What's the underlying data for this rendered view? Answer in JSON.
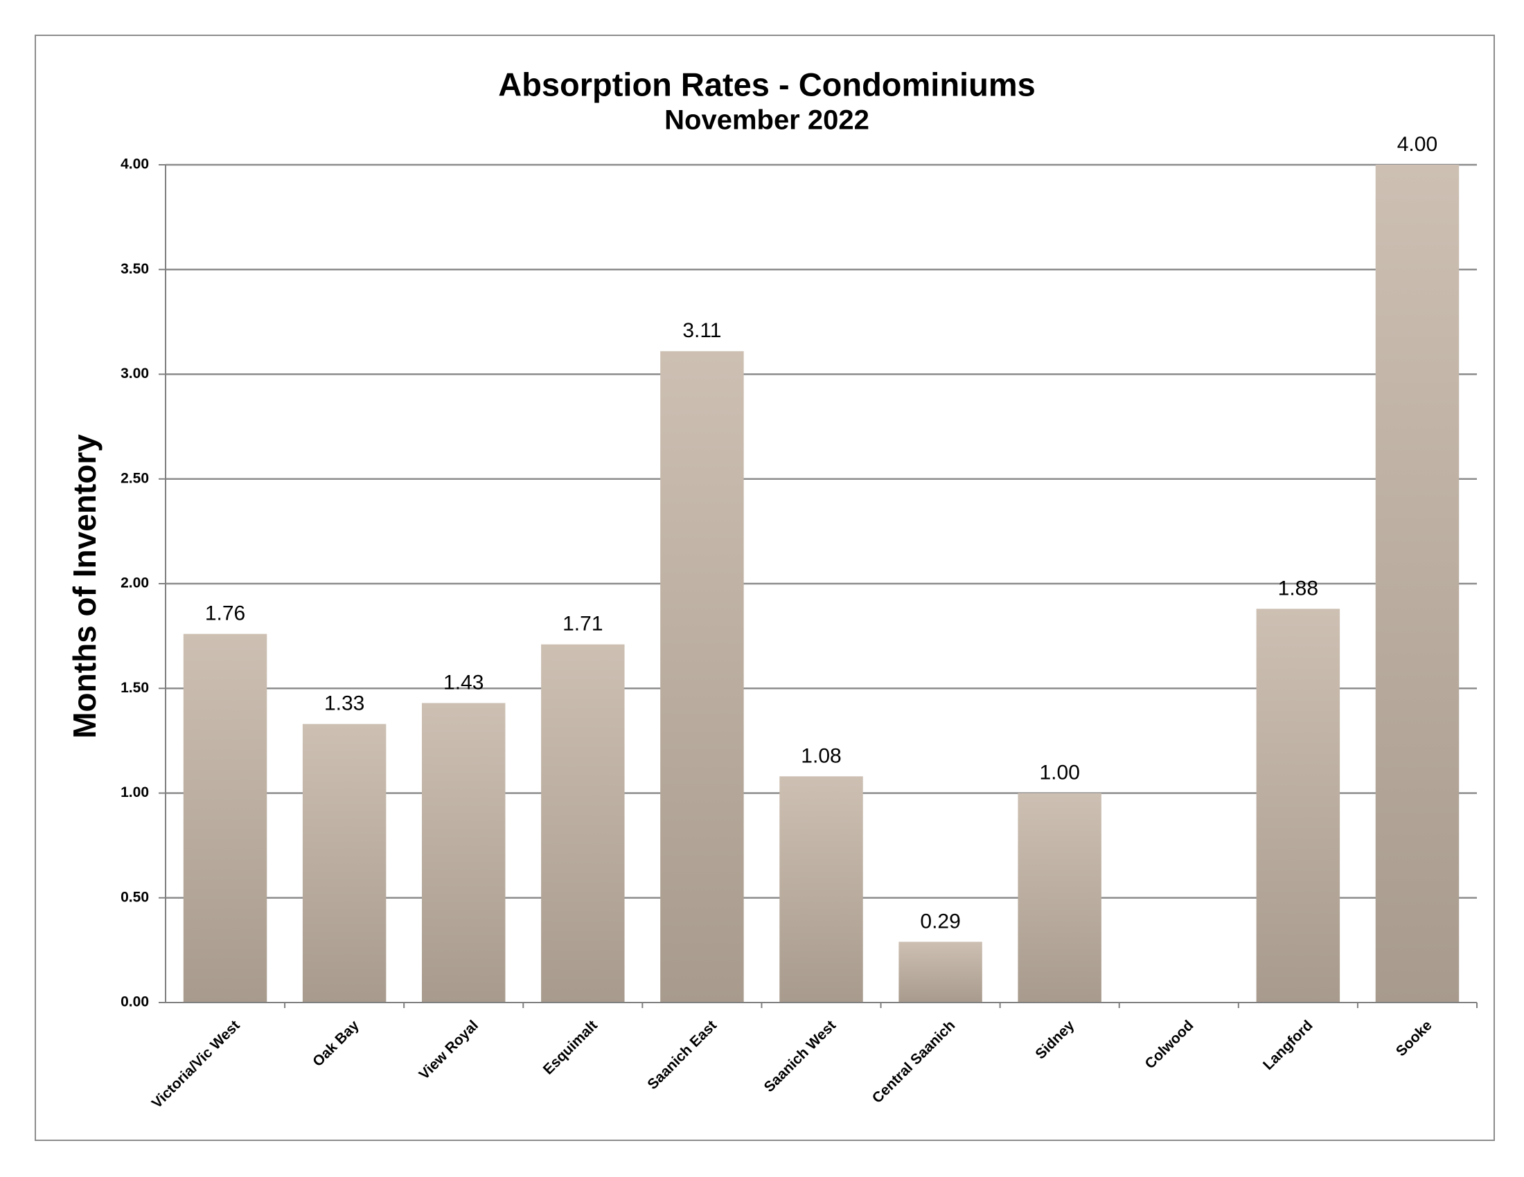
{
  "chart_data": {
    "type": "bar",
    "title": "Absorption Rates - Condominiums",
    "subtitle": "November 2022",
    "xlabel": "",
    "ylabel": "Months of Inventory",
    "ylim": [
      0,
      4
    ],
    "ytick_step": 0.5,
    "yticks": [
      "0.00",
      "0.50",
      "1.00",
      "1.50",
      "2.00",
      "2.50",
      "3.00",
      "3.50",
      "4.00"
    ],
    "categories": [
      "Victoria/Vic West",
      "Oak Bay",
      "View Royal",
      "Esquimalt",
      "Saanich East",
      "Saanich West",
      "Central Saanich",
      "Sidney",
      "Colwood",
      "Langford",
      "Sooke"
    ],
    "values": [
      1.76,
      1.33,
      1.43,
      1.71,
      3.11,
      1.08,
      0.29,
      1.0,
      null,
      1.88,
      4.0
    ],
    "data_labels": [
      "1.76",
      "1.33",
      "1.43",
      "1.71",
      "3.11",
      "1.08",
      "0.29",
      "1.00",
      "",
      "1.88",
      "4.00"
    ],
    "grid": true,
    "legend": "none",
    "colors": {
      "bar_top": "#cdc0b3",
      "bar_bottom": "#a89b8d",
      "grid": "#8c8c8c",
      "axis": "#7f7f7f",
      "frame": "#8c8c8c"
    }
  }
}
